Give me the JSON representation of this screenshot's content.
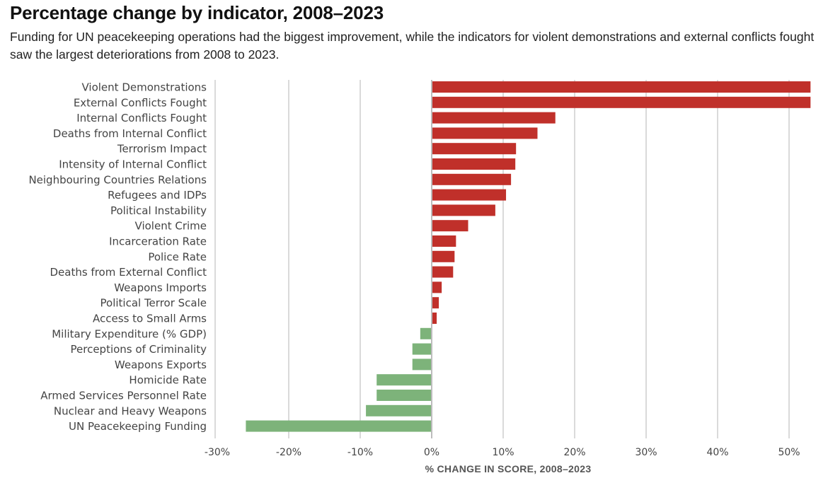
{
  "header": {
    "title": "Percentage change by indicator, 2008–2023",
    "subtitle": "Funding for UN peacekeeping operations had the biggest improvement, while the indicators for violent demonstrations and external conflicts fought saw the largest deteriorations from 2008 to 2023."
  },
  "colors": {
    "deterioration": "#c0302a",
    "improvement": "#7db37a",
    "grid": "#b5b5b5",
    "zero_line": "#7a7a7a"
  },
  "chart_data": {
    "type": "bar",
    "orientation": "horizontal",
    "title": "Percentage change by indicator, 2008–2023",
    "xlabel": "% CHANGE IN SCORE, 2008–2023",
    "ylabel": "",
    "xlim": [
      -30,
      53
    ],
    "x_ticks": [
      -30,
      -20,
      -10,
      0,
      10,
      20,
      30,
      40,
      50
    ],
    "x_tick_labels": [
      "-30%",
      "-20%",
      "-10%",
      "0%",
      "10%",
      "20%",
      "30%",
      "40%",
      "50%"
    ],
    "grid": "vertical",
    "legend": "none",
    "categories": [
      "Violent Demonstrations",
      "External Conflicts Fought",
      "Internal Conflicts Fought",
      "Deaths from Internal Conflict",
      "Terrorism Impact",
      "Intensity of Internal Conflict",
      "Neighbouring Countries Relations",
      "Refugees and IDPs",
      "Political Instability",
      "Violent Crime",
      "Incarceration Rate",
      "Police Rate",
      "Deaths from External Conflict",
      "Weapons Imports",
      "Political Terror Scale",
      "Access to Small Arms",
      "Military Expenditure (% GDP)",
      "Perceptions of Criminality",
      "Weapons Exports",
      "Homicide Rate",
      "Armed Services Personnel Rate",
      "Nuclear and Heavy Weapons",
      "UN Peacekeeping Funding"
    ],
    "values": [
      53,
      53,
      17.3,
      14.8,
      11.8,
      11.7,
      11.1,
      10.4,
      8.9,
      5.1,
      3.4,
      3.2,
      3.0,
      1.4,
      1.0,
      0.7,
      -1.6,
      -2.7,
      -2.7,
      -7.7,
      -7.7,
      -9.2,
      -26
    ]
  }
}
